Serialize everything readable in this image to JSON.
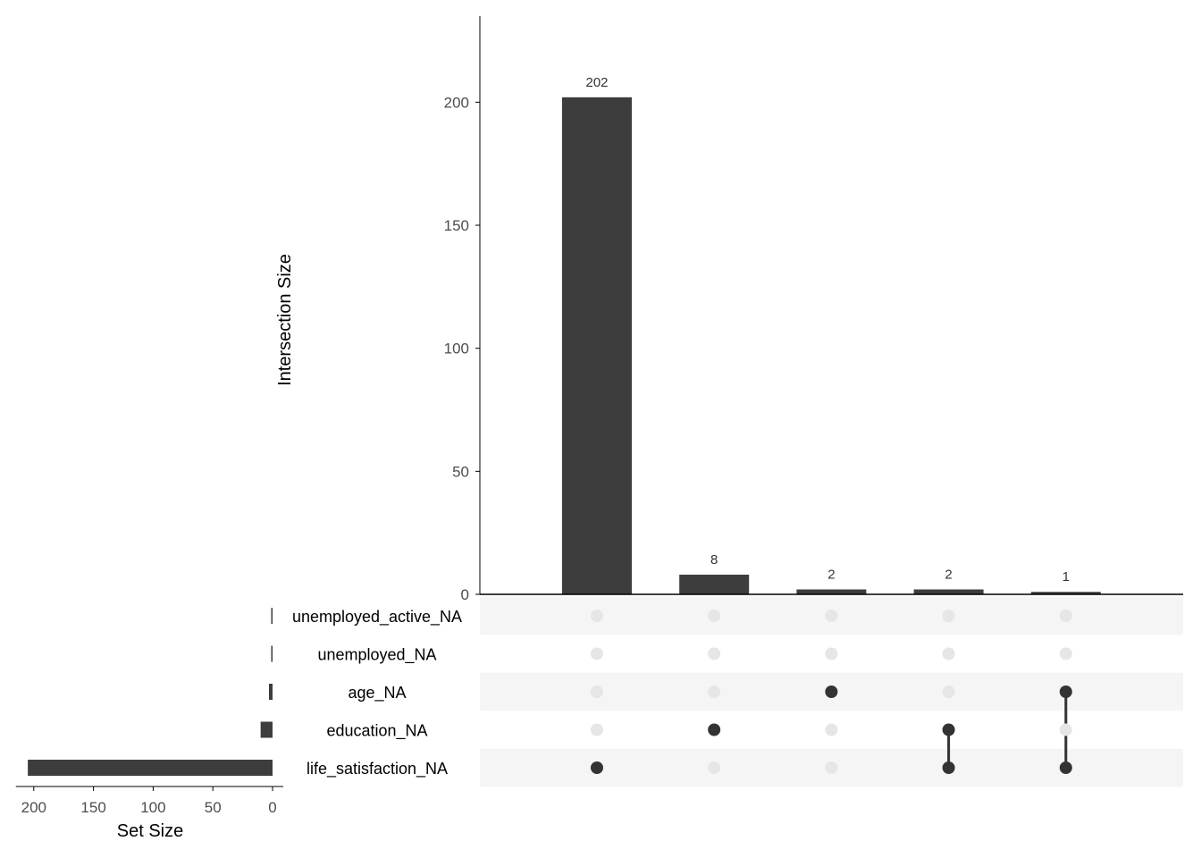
{
  "chart_data": {
    "type": "upset",
    "intersection_axis": {
      "title": "Intersection Size",
      "ylim": [
        0,
        235
      ],
      "ticks": [
        0,
        50,
        100,
        150,
        200
      ]
    },
    "set_size_axis": {
      "title": "Set Size",
      "xlim": [
        0,
        215
      ],
      "ticks": [
        200,
        150,
        100,
        50,
        0
      ]
    },
    "sets": [
      {
        "name": "unemployed_active_NA",
        "size": 1
      },
      {
        "name": "unemployed_NA",
        "size": 1
      },
      {
        "name": "age_NA",
        "size": 3
      },
      {
        "name": "education_NA",
        "size": 10
      },
      {
        "name": "life_satisfaction_NA",
        "size": 205
      }
    ],
    "intersections": [
      {
        "members": [
          "life_satisfaction_NA"
        ],
        "size": 202,
        "label": "202"
      },
      {
        "members": [
          "education_NA"
        ],
        "size": 8,
        "label": "8"
      },
      {
        "members": [
          "age_NA"
        ],
        "size": 2,
        "label": "2"
      },
      {
        "members": [
          "education_NA",
          "life_satisfaction_NA"
        ],
        "size": 2,
        "label": "2"
      },
      {
        "members": [
          "age_NA",
          "life_satisfaction_NA"
        ],
        "size": 1,
        "label": "1"
      }
    ],
    "colors": {
      "bar": "#3d3d3d",
      "dot_active": "#333333",
      "dot_inactive": "#e6e6e6",
      "stripe": "#f5f5f5",
      "axis": "#000000"
    }
  }
}
